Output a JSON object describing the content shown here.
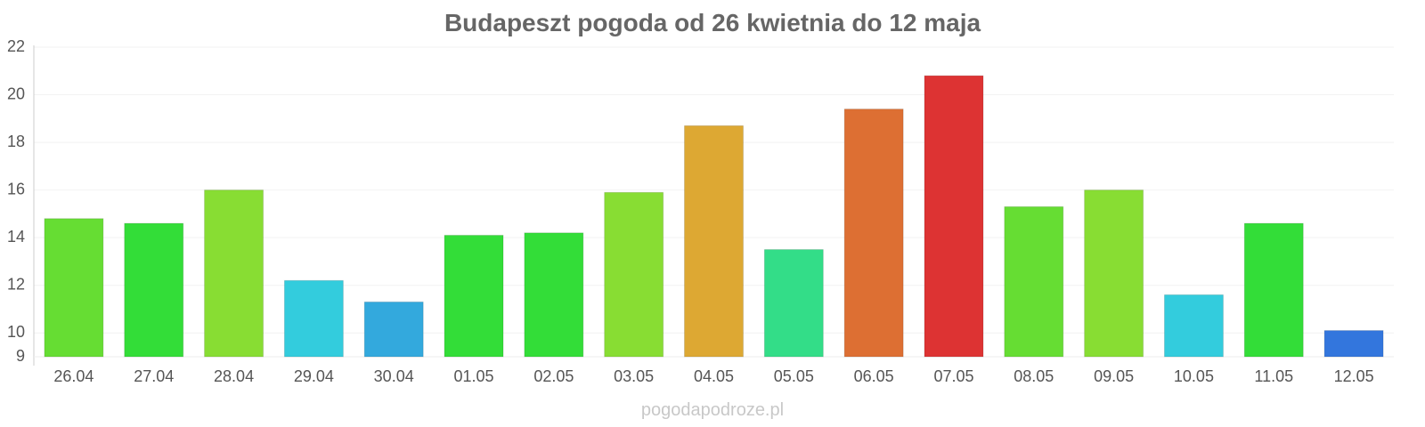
{
  "chart_data": {
    "type": "bar",
    "title": "Budapeszt pogoda od 26 kwietnia do 12 maja",
    "xlabel": "",
    "ylabel": "",
    "ylim": [
      9,
      22
    ],
    "yticks": [
      9,
      10,
      12,
      14,
      16,
      18,
      20,
      22
    ],
    "grid": true,
    "categories": [
      "26.04",
      "27.04",
      "28.04",
      "29.04",
      "30.04",
      "01.05",
      "02.05",
      "03.05",
      "04.05",
      "05.05",
      "06.05",
      "07.05",
      "08.05",
      "09.05",
      "10.05",
      "11.05",
      "12.05"
    ],
    "values": [
      14.8,
      14.6,
      16.0,
      12.2,
      11.3,
      14.1,
      14.2,
      15.9,
      18.7,
      13.5,
      19.4,
      20.8,
      15.3,
      16.0,
      11.6,
      14.6,
      10.1
    ],
    "colors": [
      "#66dd33",
      "#33dd38",
      "#88dd33",
      "#33ccdd",
      "#33a9dd",
      "#33dd38",
      "#33dd38",
      "#88dd33",
      "#dda833",
      "#33dd88",
      "#dd6f33",
      "#dd3333",
      "#66dd33",
      "#88dd33",
      "#33ccdd",
      "#33dd38",
      "#3376dd"
    ]
  },
  "watermark": "pogodapodroze.pl"
}
